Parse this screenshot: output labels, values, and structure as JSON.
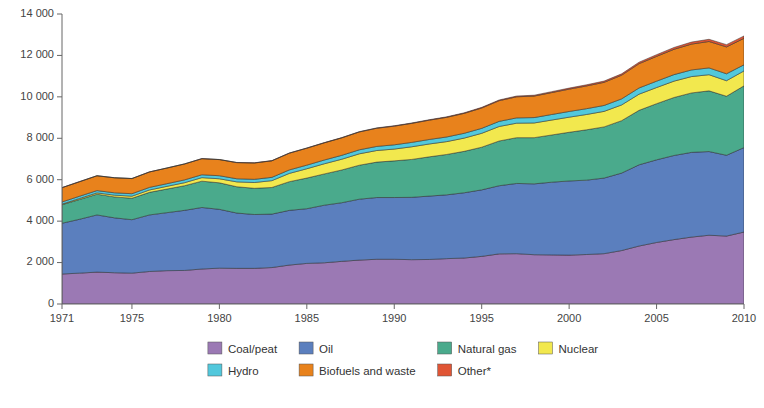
{
  "chart_data": {
    "type": "area",
    "stacked": true,
    "grid": false,
    "legend": "bottom",
    "x": [
      1971,
      1972,
      1973,
      1974,
      1975,
      1976,
      1977,
      1978,
      1979,
      1980,
      1981,
      1982,
      1983,
      1984,
      1985,
      1986,
      1987,
      1988,
      1989,
      1990,
      1991,
      1992,
      1993,
      1994,
      1995,
      1996,
      1997,
      1998,
      1999,
      2000,
      2001,
      2002,
      2003,
      2004,
      2005,
      2006,
      2007,
      2008,
      2009,
      2010
    ],
    "series": [
      {
        "name": "Coal/peat",
        "color": "#9b79b4",
        "values": [
          1449,
          1490,
          1540,
          1510,
          1490,
          1570,
          1610,
          1620,
          1690,
          1730,
          1720,
          1720,
          1760,
          1880,
          1960,
          1990,
          2060,
          2120,
          2160,
          2160,
          2140,
          2150,
          2190,
          2220,
          2300,
          2420,
          2430,
          2380,
          2370,
          2360,
          2390,
          2430,
          2580,
          2800,
          2970,
          3110,
          3230,
          3320,
          3280,
          3474
        ]
      },
      {
        "name": "Oil",
        "color": "#5b7fbe",
        "values": [
          2450,
          2600,
          2760,
          2650,
          2580,
          2730,
          2800,
          2900,
          2970,
          2840,
          2670,
          2600,
          2580,
          2640,
          2640,
          2780,
          2830,
          2940,
          2980,
          2980,
          3010,
          3060,
          3080,
          3150,
          3210,
          3290,
          3390,
          3420,
          3510,
          3580,
          3590,
          3650,
          3740,
          3920,
          3990,
          4060,
          4090,
          4040,
          3900,
          4077
        ]
      },
      {
        "name": "Natural gas",
        "color": "#4aaa8c",
        "values": [
          895,
          955,
          1000,
          1010,
          1035,
          1090,
          1140,
          1190,
          1270,
          1280,
          1270,
          1265,
          1285,
          1385,
          1480,
          1510,
          1580,
          1640,
          1710,
          1770,
          1830,
          1895,
          1950,
          2000,
          2060,
          2160,
          2210,
          2230,
          2280,
          2350,
          2430,
          2470,
          2530,
          2630,
          2710,
          2800,
          2870,
          2930,
          2850,
          2982
        ]
      },
      {
        "name": "Nuclear",
        "color": "#f2e84e",
        "values": [
          29,
          50,
          65,
          85,
          100,
          115,
          130,
          145,
          170,
          195,
          235,
          280,
          330,
          400,
          450,
          490,
          520,
          550,
          560,
          570,
          610,
          620,
          620,
          640,
          670,
          700,
          700,
          710,
          720,
          730,
          740,
          750,
          760,
          780,
          780,
          790,
          790,
          780,
          750,
          720
        ]
      },
      {
        "name": "Hydro",
        "color": "#52c8dc",
        "values": [
          104,
          108,
          110,
          113,
          120,
          124,
          128,
          135,
          140,
          148,
          150,
          155,
          160,
          168,
          174,
          182,
          188,
          194,
          198,
          205,
          212,
          218,
          224,
          232,
          240,
          248,
          255,
          260,
          268,
          275,
          280,
          285,
          292,
          300,
          307,
          315,
          320,
          328,
          335,
          295
        ]
      },
      {
        "name": "Biofuels and waste",
        "color": "#e8821c",
        "values": [
          688,
          700,
          715,
          725,
          730,
          745,
          755,
          768,
          775,
          778,
          780,
          788,
          798,
          808,
          818,
          828,
          843,
          862,
          878,
          902,
          918,
          932,
          948,
          962,
          982,
          998,
          1018,
          1038,
          1058,
          1078,
          1098,
          1118,
          1143,
          1172,
          1198,
          1222,
          1248,
          1276,
          1296,
          1277
        ]
      },
      {
        "name": "Other*",
        "color": "#e05535",
        "values": [
          5,
          5,
          5,
          5,
          5,
          5,
          6,
          6,
          6,
          7,
          8,
          8,
          9,
          10,
          11,
          12,
          13,
          14,
          16,
          18,
          20,
          22,
          25,
          28,
          31,
          35,
          38,
          42,
          46,
          50,
          55,
          60,
          65,
          72,
          80,
          88,
          97,
          105,
          110,
          115
        ]
      }
    ],
    "xlim": [
      1971,
      2010
    ],
    "xticks": [
      1971,
      1975,
      1980,
      1985,
      1990,
      1995,
      2000,
      2005,
      2010
    ],
    "ylim": [
      0,
      14000
    ],
    "yticks": [
      0,
      {
        "value": 2000,
        "label": "2 000"
      },
      {
        "value": 4000,
        "label": "4 000"
      },
      {
        "value": 6000,
        "label": "6 000"
      },
      {
        "value": 8000,
        "label": "8 000"
      },
      {
        "value": 10000,
        "label": "10 000"
      },
      {
        "value": 12000,
        "label": "12 000"
      },
      {
        "value": 14000,
        "label": "14 000"
      }
    ]
  }
}
